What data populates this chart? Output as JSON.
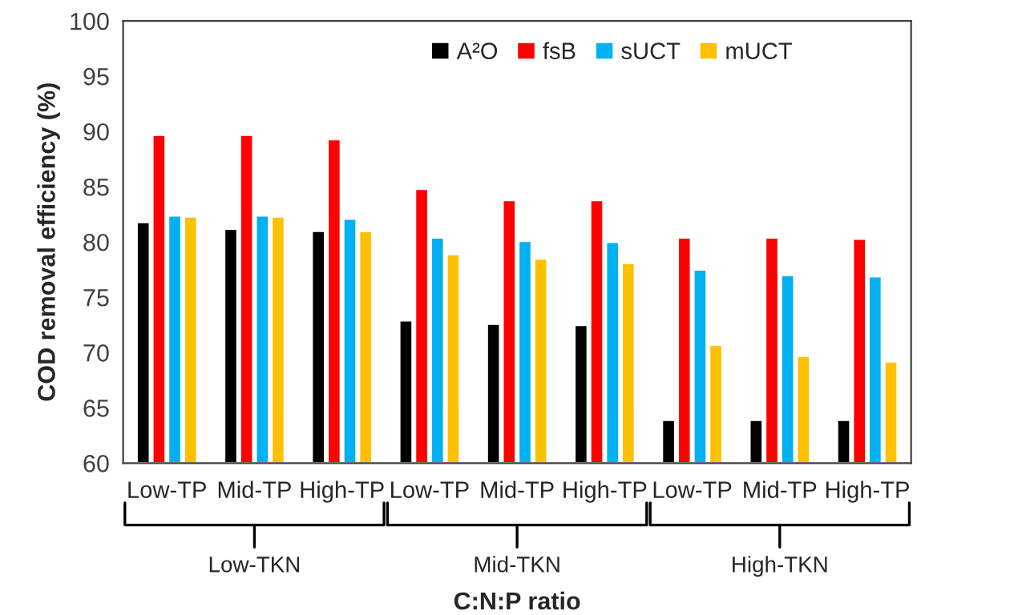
{
  "chart_data": {
    "type": "bar",
    "categories": [
      "Low-TP",
      "Mid-TP",
      "High-TP",
      "Low-TP",
      "Mid-TP",
      "High-TP",
      "Low-TP",
      "Mid-TP",
      "High-TP"
    ],
    "series": [
      {
        "name": "A²O",
        "color": "#000000",
        "values": [
          81.8,
          81.2,
          81.0,
          72.9,
          72.6,
          72.5,
          63.9,
          63.9,
          63.9
        ]
      },
      {
        "name": "fsB",
        "color": "#ff0000",
        "values": [
          89.7,
          89.7,
          89.3,
          84.8,
          83.8,
          83.8,
          80.4,
          80.4,
          80.3
        ]
      },
      {
        "name": "sUCT",
        "color": "#00b0f0",
        "values": [
          82.4,
          82.4,
          82.1,
          80.4,
          80.1,
          80.0,
          77.5,
          77.0,
          76.9
        ]
      },
      {
        "name": "mUCT",
        "color": "#ffc000",
        "values": [
          82.3,
          82.3,
          81.0,
          78.9,
          78.5,
          78.1,
          70.7,
          69.7,
          69.2
        ]
      }
    ],
    "ylim": [
      60,
      100
    ],
    "yticks": [
      60,
      65,
      70,
      75,
      80,
      85,
      90,
      95,
      100
    ],
    "xlabel": "C:N:P ratio",
    "ylabel": "COD removal efficiency (%)",
    "annotations": [
      "Low-TKN",
      "Mid-TKN",
      "High-TKN"
    ],
    "legend": "top",
    "grid": false
  }
}
